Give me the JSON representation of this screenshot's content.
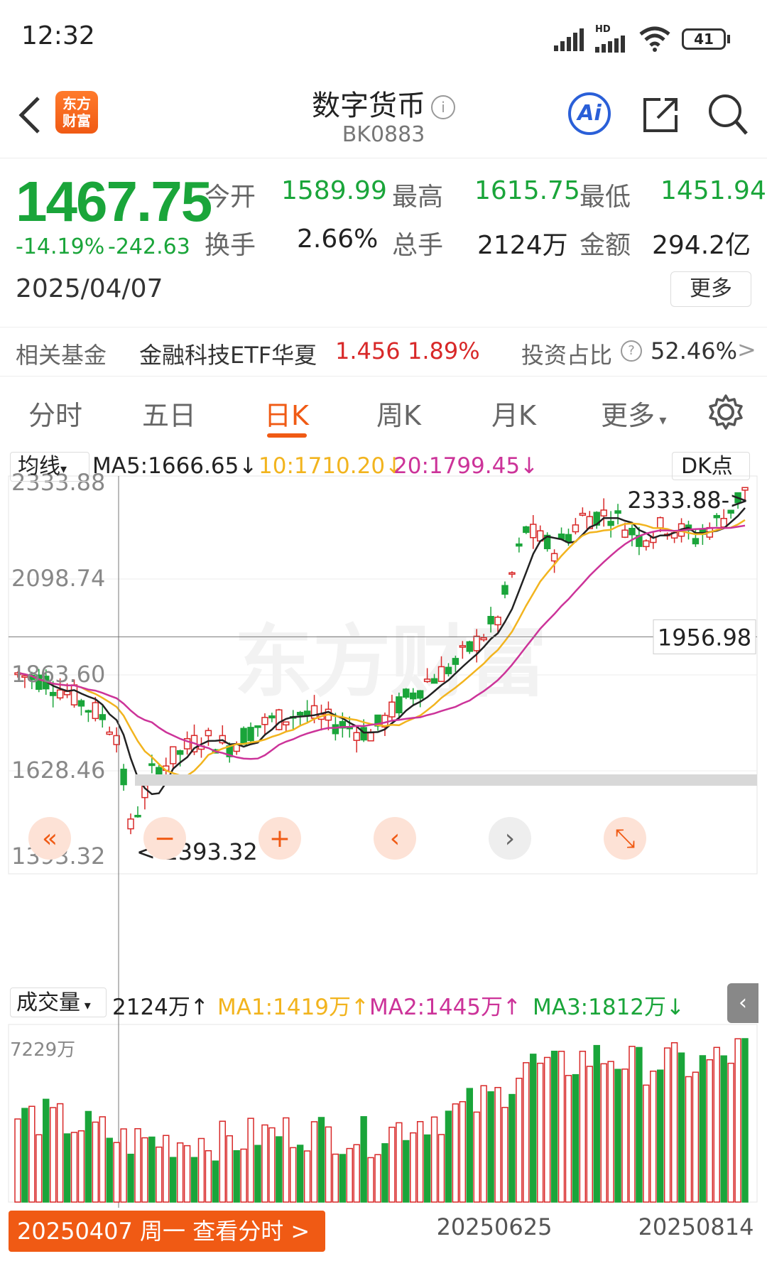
{
  "status": {
    "time": "12:32",
    "network": "HD",
    "battery": "41"
  },
  "header": {
    "title": "数字货币",
    "code": "BK0883",
    "logo_text": "东方财富"
  },
  "quote": {
    "price": "1467.75",
    "change_pct": "-14.19%",
    "change_abs": "-242.63",
    "date": "2025/04/07",
    "open_label": "今开",
    "open": "1589.99",
    "high_label": "最高",
    "high": "1615.75",
    "low_label": "最低",
    "low": "1451.94",
    "turnover_label": "换手",
    "turnover": "2.66%",
    "volume_label": "总手",
    "volume": "2124万",
    "amount_label": "金额",
    "amount": "294.2亿",
    "more_label": "更多"
  },
  "fund": {
    "label": "相关基金",
    "name": "金融科技ETF华夏",
    "price": "1.456",
    "pct": "1.89%",
    "ratio_label": "投资占比",
    "ratio": "52.46%"
  },
  "tabs": [
    "分时",
    "五日",
    "日K",
    "周K",
    "月K",
    "更多"
  ],
  "active_tab": "日K",
  "ma_bar": {
    "selector": "均线",
    "ma5": "MA5:1666.65",
    "ma10": "10:1710.20",
    "ma20": "20:1799.45",
    "dk": "DK点"
  },
  "price_axis": [
    "2333.88",
    "2098.74",
    "1863.60",
    "1628.46",
    "1393.32"
  ],
  "crosshair_value": "1956.98",
  "max_label": "2333.88->",
  "min_label": "<-1393.32",
  "volume_bar": {
    "selector": "成交量",
    "vol": "2124万",
    "ma1": "MA1:1419万",
    "ma2": "MA2:1445万",
    "ma3": "MA3:1812万"
  },
  "volume_axis_max": "7229万",
  "date_axis": [
    "20250625",
    "20250814"
  ],
  "footer_button": "20250407 周一 查看分时 >",
  "watermark": "东方财富",
  "colors": {
    "up": "#d82828",
    "down": "#1aa53a",
    "ma5": "#222222",
    "ma10": "#f2b41e",
    "ma20": "#cc3399",
    "accent": "#f05a14"
  }
}
